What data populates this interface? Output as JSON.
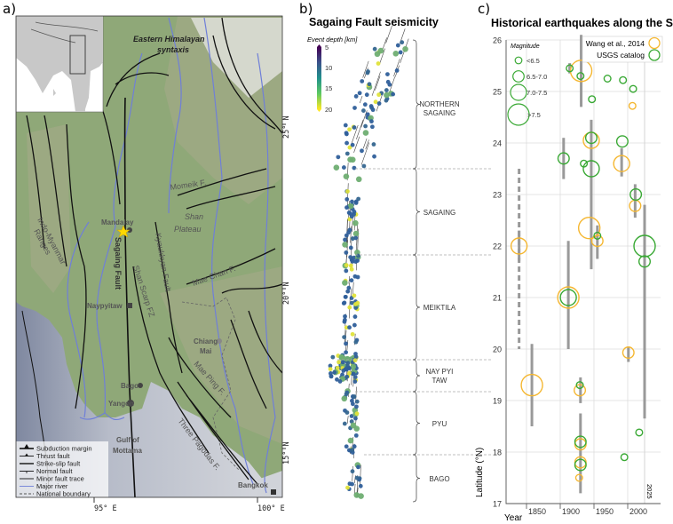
{
  "panel_a": {
    "label": "a)",
    "place_labels": {
      "syntaxis_1": "Eastern Himalayan",
      "syntaxis_2": "syntaxis",
      "momeik": "Momeik F.",
      "shan_1": "Shan",
      "shan_2": "Plateau",
      "mandalay": "Mandalay",
      "sagaing_fault": "Sagaing Fault",
      "shan_scarp": "Shan Scarp FZ",
      "kyaukkyan": "Kyaukkyan Fault",
      "mae_chan": "Mae Chan F.",
      "indo_1": "Indo-Myanmar",
      "indo_2": "Ranges",
      "naypyitaw": "Naypyitaw",
      "chiang_1": "Chiang",
      "chiang_2": "Mai",
      "mae_ping": "Mae Ping F.",
      "bago": "Bago",
      "yangon": "Yangon",
      "gulf_1": "Gulf of",
      "gulf_2": "Mottama",
      "three_pagodas": "Three Pagodas F.",
      "bangkok": "Bangkok"
    },
    "ticks": {
      "lat_25": "25° N",
      "lat_20": "20° N",
      "lat_15": "15° N",
      "lon_95": "95° E",
      "lon_100": "100° E"
    },
    "legend": [
      {
        "label": "Subduction margin",
        "icon": "subduction-margin-icon"
      },
      {
        "label": "Thrust fault",
        "icon": "thrust-fault-icon"
      },
      {
        "label": "Strike-slip fault",
        "icon": "strike-slip-fault-icon"
      },
      {
        "label": "Normal fault",
        "icon": "normal-fault-icon"
      },
      {
        "label": "Minor fault trace",
        "icon": "minor-fault-icon"
      },
      {
        "label": "Major river",
        "icon": "river-icon"
      },
      {
        "label": "National boundary",
        "icon": "boundary-icon"
      }
    ],
    "colors": {
      "land": "#8fa878",
      "sea": "#c9ccd3",
      "deep_sea": "#8a92a8",
      "river": "#6f7fd8",
      "fault": "#111111",
      "epicenter": "#ffd800"
    }
  },
  "panel_b": {
    "label": "b)",
    "title": "Sagaing Fault seismicity",
    "colorbar": {
      "title": "Event depth [km]",
      "ticks": [
        "5",
        "10",
        "15",
        "20"
      ],
      "min": 5,
      "max": 20,
      "colormap": "viridis"
    },
    "segments": [
      {
        "label_1": "NORTHERN",
        "label_2": "SAGAING"
      },
      {
        "label_1": "SAGAING",
        "label_2": ""
      },
      {
        "label_1": "MEIKTILA",
        "label_2": ""
      },
      {
        "label_1": "NAY PYI",
        "label_2": "TAW"
      },
      {
        "label_1": "PYU",
        "label_2": ""
      },
      {
        "label_1": "BAGO",
        "label_2": ""
      }
    ]
  },
  "chart_data": {
    "type": "scatter",
    "panel_label": "c)",
    "title": "Historical earthquakes along the SF",
    "xlabel": "Year",
    "ylabel": "Latitude (°N)",
    "xlim": [
      1818,
      2047
    ],
    "ylim": [
      17,
      26
    ],
    "xticks": [
      "1850",
      "1900",
      "1950",
      "2000"
    ],
    "yticks": [
      "17",
      "18",
      "19",
      "20",
      "21",
      "22",
      "23",
      "24",
      "25",
      "26"
    ],
    "grid": true,
    "annotation": "2025",
    "legend_position": "top-right",
    "magnitude_legend": {
      "title": "Magnitude",
      "classes": [
        "<6.5",
        "6.5-7.0",
        "7.0-7.5",
        ">7.5"
      ]
    },
    "series": [
      {
        "name": "Wang et al., 2014",
        "color": "#f5b731",
        "points": [
          {
            "year": 1839,
            "lat": 22.0,
            "mag": "7.0-7.5"
          },
          {
            "year": 1858,
            "lat": 19.3,
            "mag": ">7.5"
          },
          {
            "year": 1912,
            "lat": 21.0,
            "mag": ">7.5"
          },
          {
            "year": 1931,
            "lat": 25.4,
            "mag": ">7.5"
          },
          {
            "year": 1946,
            "lat": 24.05,
            "mag": "7.0-7.5"
          },
          {
            "year": 1943,
            "lat": 22.35,
            "mag": ">7.5"
          },
          {
            "year": 1955,
            "lat": 22.1,
            "mag": "6.5-7.0"
          },
          {
            "year": 1991,
            "lat": 23.6,
            "mag": "7.0-7.5"
          },
          {
            "year": 2007,
            "lat": 24.72,
            "mag": "<6.5"
          },
          {
            "year": 2011,
            "lat": 22.78,
            "mag": "6.5-7.0"
          },
          {
            "year": 2001,
            "lat": 19.93,
            "mag": "6.5-7.0"
          },
          {
            "year": 1929,
            "lat": 19.2,
            "mag": "6.5-7.0"
          },
          {
            "year": 1930,
            "lat": 18.15,
            "mag": "6.5-7.0"
          },
          {
            "year": 1930,
            "lat": 17.8,
            "mag": "6.5-7.0"
          },
          {
            "year": 1928,
            "lat": 17.5,
            "mag": "<6.5"
          }
        ]
      },
      {
        "name": "USGS catalog",
        "color": "#3aa935",
        "points": [
          {
            "year": 1914,
            "lat": 25.45,
            "mag": "<6.5"
          },
          {
            "year": 1930,
            "lat": 25.3,
            "mag": "<6.5"
          },
          {
            "year": 1947,
            "lat": 24.85,
            "mag": "<6.5"
          },
          {
            "year": 1970,
            "lat": 25.25,
            "mag": "<6.5"
          },
          {
            "year": 1993,
            "lat": 25.22,
            "mag": "<6.5"
          },
          {
            "year": 2008,
            "lat": 25.05,
            "mag": "<6.5"
          },
          {
            "year": 1946,
            "lat": 24.1,
            "mag": "6.5-7.0"
          },
          {
            "year": 1992,
            "lat": 24.03,
            "mag": "6.5-7.0"
          },
          {
            "year": 1905,
            "lat": 23.7,
            "mag": "6.5-7.0"
          },
          {
            "year": 1935,
            "lat": 23.6,
            "mag": "<6.5"
          },
          {
            "year": 1946,
            "lat": 23.5,
            "mag": "7.0-7.5"
          },
          {
            "year": 2012,
            "lat": 23.0,
            "mag": "6.5-7.0"
          },
          {
            "year": 1955,
            "lat": 22.2,
            "mag": "<6.5"
          },
          {
            "year": 2025,
            "lat": 22.0,
            "mag": ">7.5"
          },
          {
            "year": 2025,
            "lat": 21.7,
            "mag": "6.5-7.0"
          },
          {
            "year": 1912,
            "lat": 21.0,
            "mag": "7.0-7.5"
          },
          {
            "year": 1929,
            "lat": 19.3,
            "mag": "<6.5"
          },
          {
            "year": 1930,
            "lat": 18.2,
            "mag": "6.5-7.0"
          },
          {
            "year": 1930,
            "lat": 17.75,
            "mag": "6.5-7.0"
          },
          {
            "year": 1995,
            "lat": 17.9,
            "mag": "<6.5"
          },
          {
            "year": 2017,
            "lat": 18.38,
            "mag": "<6.5"
          }
        ]
      }
    ],
    "rupture_extents": [
      {
        "year": 1839,
        "lat_min": 20.0,
        "lat_max": 23.5,
        "dashed": true
      },
      {
        "year": 1839,
        "lat_min": 21.7,
        "lat_max": 22.3,
        "dashed": false
      },
      {
        "year": 1858,
        "lat_min": 18.5,
        "lat_max": 20.1,
        "dashed": false
      },
      {
        "year": 1905,
        "lat_min": 23.3,
        "lat_max": 24.1,
        "dashed": false
      },
      {
        "year": 1912,
        "lat_min": 20.0,
        "lat_max": 22.1,
        "dashed": false
      },
      {
        "year": 1914,
        "lat_min": 25.35,
        "lat_max": 25.55,
        "dashed": false
      },
      {
        "year": 1931,
        "lat_min": 24.7,
        "lat_max": 26.1,
        "dashed": false
      },
      {
        "year": 1946,
        "lat_min": 21.55,
        "lat_max": 24.45,
        "dashed": false
      },
      {
        "year": 1955,
        "lat_min": 21.75,
        "lat_max": 22.4,
        "dashed": false
      },
      {
        "year": 1991,
        "lat_min": 23.35,
        "lat_max": 23.9,
        "dashed": false
      },
      {
        "year": 2011,
        "lat_min": 22.55,
        "lat_max": 23.2,
        "dashed": false
      },
      {
        "year": 2025,
        "lat_min": 18.65,
        "lat_max": 22.8,
        "dashed": false
      },
      {
        "year": 2001,
        "lat_min": 19.75,
        "lat_max": 20.05,
        "dashed": false
      },
      {
        "year": 1930,
        "lat_min": 18.95,
        "lat_max": 19.45,
        "dashed": false
      },
      {
        "year": 1930,
        "lat_min": 17.2,
        "lat_max": 18.75,
        "dashed": false
      }
    ]
  }
}
